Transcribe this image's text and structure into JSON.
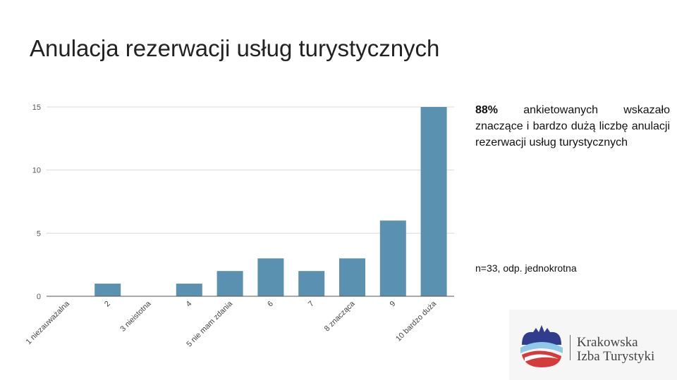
{
  "slide": {
    "title": "Anulacja rezerwacji usług turystycznych",
    "note_highlight": "88%",
    "note_text": " ankietowanych wskazało znaczące i bardzo dużą liczbę anulacji rezerwacji usług turystycznych",
    "sample_note": "n=33, odp. jednokrotna"
  },
  "logo": {
    "line1": "Krakowska",
    "line2": "Izba Turystyki"
  },
  "chart_data": {
    "type": "bar",
    "categories": [
      "1 niezauważalna",
      "2",
      "3 nieistotna",
      "4",
      "5 nie mam zdania",
      "6",
      "7",
      "8 znacząca",
      "9",
      "10 bardzo duża"
    ],
    "values": [
      0,
      1,
      0,
      1,
      2,
      3,
      2,
      3,
      6,
      15
    ],
    "yticks": [
      0,
      5,
      10,
      15
    ],
    "ylim": [
      0,
      15
    ],
    "grid": true,
    "bar_color": "#5b91b0",
    "grid_color": "#d9d9d9",
    "axis_color": "#555555"
  }
}
